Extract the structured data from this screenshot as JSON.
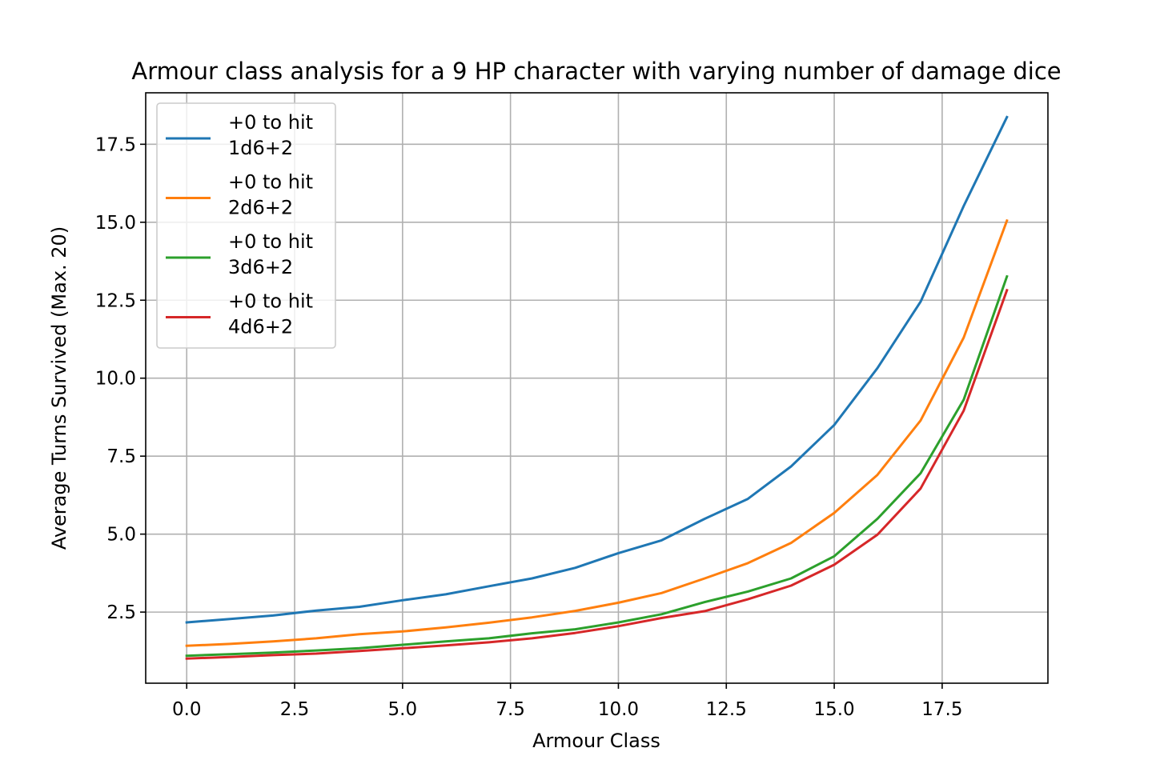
{
  "chart_data": {
    "type": "line",
    "title": "Armour class analysis for a 9 HP character with varying number of damage dice",
    "xlabel": "Armour Class",
    "ylabel": "Average Turns Survived (Max. 20)",
    "xlim": [
      -0.95,
      19.95
    ],
    "ylim": [
      0.22,
      19.15
    ],
    "grid": true,
    "legend_placement": "upper-left",
    "xticks": [
      0.0,
      2.5,
      5.0,
      7.5,
      10.0,
      12.5,
      15.0,
      17.5
    ],
    "yticks": [
      2.5,
      5.0,
      7.5,
      10.0,
      12.5,
      15.0,
      17.5
    ],
    "xtick_labels": [
      "0.0",
      "2.5",
      "5.0",
      "7.5",
      "10.0",
      "12.5",
      "15.0",
      "17.5"
    ],
    "ytick_labels": [
      "2.5",
      "5.0",
      "7.5",
      "10.0",
      "12.5",
      "15.0",
      "17.5"
    ],
    "x": [
      0,
      1,
      2,
      3,
      4,
      5,
      6,
      7,
      8,
      9,
      10,
      11,
      12,
      13,
      14,
      15,
      16,
      17,
      18,
      19
    ],
    "series": [
      {
        "name": "+0 to hit\n1d6+2",
        "label_lines": [
          "+0 to hit",
          "1d6+2"
        ],
        "color": "#1f77b4",
        "values": [
          2.17,
          2.28,
          2.39,
          2.55,
          2.67,
          2.88,
          3.07,
          3.33,
          3.58,
          3.92,
          4.39,
          4.8,
          5.49,
          6.13,
          7.17,
          8.5,
          10.32,
          12.45,
          15.52,
          18.37
        ]
      },
      {
        "name": "+0 to hit\n2d6+2",
        "label_lines": [
          "+0 to hit",
          "2d6+2"
        ],
        "color": "#ff7f0e",
        "values": [
          1.42,
          1.48,
          1.56,
          1.66,
          1.79,
          1.88,
          2.01,
          2.16,
          2.33,
          2.54,
          2.8,
          3.11,
          3.58,
          4.07,
          4.72,
          5.68,
          6.9,
          8.64,
          11.3,
          15.05
        ]
      },
      {
        "name": "+0 to hit\n3d6+2",
        "label_lines": [
          "+0 to hit",
          "3d6+2"
        ],
        "color": "#2ca02c",
        "values": [
          1.1,
          1.15,
          1.2,
          1.27,
          1.34,
          1.45,
          1.56,
          1.66,
          1.82,
          1.95,
          2.17,
          2.43,
          2.82,
          3.16,
          3.58,
          4.29,
          5.49,
          6.95,
          9.31,
          13.26
        ]
      },
      {
        "name": "+0 to hit\n4d6+2",
        "label_lines": [
          "+0 to hit",
          "4d6+2"
        ],
        "color": "#d62728",
        "values": [
          1.01,
          1.06,
          1.12,
          1.17,
          1.25,
          1.34,
          1.43,
          1.53,
          1.66,
          1.83,
          2.05,
          2.31,
          2.53,
          2.91,
          3.35,
          4.02,
          4.98,
          6.46,
          8.96,
          12.82
        ]
      }
    ]
  }
}
